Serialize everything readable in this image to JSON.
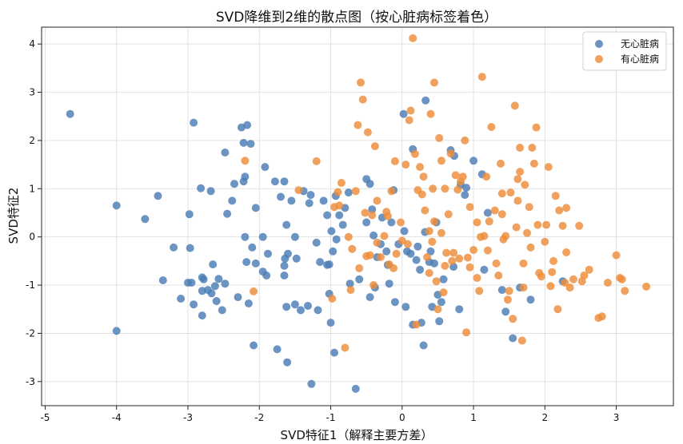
{
  "chart_data": {
    "type": "scatter",
    "title": "SVD降维到2维的散点图（按心脏病标签着色）",
    "xlabel": "SVD特征1（解释主要方差）",
    "ylabel": "SVD特征2",
    "xlim": [
      -5.05,
      3.8
    ],
    "ylim": [
      -3.5,
      4.35
    ],
    "xticks": [
      -5,
      -4,
      -3,
      -2,
      -1,
      0,
      1,
      2,
      3
    ],
    "yticks": [
      -3,
      -2,
      -1,
      0,
      1,
      2,
      3,
      4
    ],
    "grid": true,
    "legend_position": "top-right",
    "series": [
      {
        "name": "无心脏病",
        "color": "#4a7db5",
        "points": [
          [
            -4.65,
            2.55
          ],
          [
            -4.0,
            0.65
          ],
          [
            -4.0,
            -1.95
          ],
          [
            -3.6,
            0.37
          ],
          [
            -3.42,
            0.85
          ],
          [
            -3.35,
            -0.9
          ],
          [
            -3.2,
            -0.22
          ],
          [
            -3.1,
            -1.28
          ],
          [
            -3.0,
            -0.95
          ],
          [
            -2.98,
            0.47
          ],
          [
            -2.97,
            -0.23
          ],
          [
            -2.95,
            -0.95
          ],
          [
            -2.92,
            2.37
          ],
          [
            -2.92,
            -1.4
          ],
          [
            -2.82,
            1.01
          ],
          [
            -2.8,
            -0.84
          ],
          [
            -2.8,
            -1.12
          ],
          [
            -2.78,
            -0.88
          ],
          [
            -2.8,
            -1.63
          ],
          [
            -2.72,
            -1.1
          ],
          [
            -2.68,
            0.95
          ],
          [
            -2.67,
            -1.17
          ],
          [
            -2.65,
            -0.57
          ],
          [
            -2.62,
            -1.02
          ],
          [
            -2.6,
            -1.33
          ],
          [
            -2.57,
            -0.87
          ],
          [
            -2.52,
            -1.52
          ],
          [
            -2.48,
            -0.97
          ],
          [
            -2.48,
            1.75
          ],
          [
            -2.45,
            0.48
          ],
          [
            -2.38,
            0.75
          ],
          [
            -2.35,
            1.1
          ],
          [
            -2.3,
            -1.25
          ],
          [
            -2.25,
            2.27
          ],
          [
            -2.22,
            1.95
          ],
          [
            -2.22,
            1.15
          ],
          [
            -2.2,
            1.25
          ],
          [
            -2.2,
            0.0
          ],
          [
            -2.18,
            -0.52
          ],
          [
            -2.17,
            2.32
          ],
          [
            -2.15,
            -1.38
          ],
          [
            -2.12,
            1.93
          ],
          [
            -2.1,
            -0.22
          ],
          [
            -2.08,
            -2.25
          ],
          [
            -2.05,
            -0.55
          ],
          [
            -2.05,
            0.6
          ],
          [
            -1.95,
            0.0
          ],
          [
            -1.95,
            -0.72
          ],
          [
            -1.92,
            1.45
          ],
          [
            -1.9,
            -0.8
          ],
          [
            -1.88,
            -0.35
          ],
          [
            -1.78,
            1.15
          ],
          [
            -1.75,
            -2.33
          ],
          [
            -1.7,
            0.83
          ],
          [
            -1.65,
            1.15
          ],
          [
            -1.65,
            -0.6
          ],
          [
            -1.64,
            -0.45
          ],
          [
            -1.65,
            -0.8
          ],
          [
            -1.62,
            -1.45
          ],
          [
            -1.62,
            0.25
          ],
          [
            -1.61,
            -2.6
          ],
          [
            -1.6,
            -0.35
          ],
          [
            -1.55,
            0.75
          ],
          [
            -1.5,
            0.0
          ],
          [
            -1.48,
            -0.45
          ],
          [
            -1.5,
            -1.4
          ],
          [
            -1.42,
            -1.52
          ],
          [
            -1.38,
            0.95
          ],
          [
            -1.32,
            -1.43
          ],
          [
            -1.3,
            0.7
          ],
          [
            -1.28,
            0.87
          ],
          [
            -1.27,
            -3.05
          ],
          [
            -1.2,
            -0.12
          ],
          [
            -1.18,
            -1.52
          ],
          [
            -1.15,
            -0.52
          ],
          [
            -1.1,
            0.75
          ],
          [
            -1.05,
            -0.58
          ],
          [
            -1.05,
            0.45
          ],
          [
            -1.02,
            -1.18
          ],
          [
            -1.02,
            -0.57
          ],
          [
            -1.0,
            -1.78
          ],
          [
            -0.99,
            0.12
          ],
          [
            -0.97,
            -0.3
          ],
          [
            -0.95,
            -2.4
          ],
          [
            -0.93,
            0.85
          ],
          [
            -0.92,
            -0.05
          ],
          [
            -0.88,
            0.45
          ],
          [
            -0.83,
            0.25
          ],
          [
            -0.8,
            0.6
          ],
          [
            -0.75,
            0.92
          ],
          [
            -0.73,
            -0.97
          ],
          [
            -0.65,
            -3.15
          ],
          [
            -0.6,
            -0.88
          ],
          [
            -0.5,
            0.3
          ],
          [
            -0.5,
            1.2
          ],
          [
            -0.45,
            1.1
          ],
          [
            -0.45,
            -1.25
          ],
          [
            -0.42,
            0.57
          ],
          [
            -0.4,
            0.03
          ],
          [
            -0.38,
            -1.05
          ],
          [
            -0.35,
            -0.42
          ],
          [
            -0.3,
            -0.15
          ],
          [
            -0.28,
            0.4
          ],
          [
            -0.22,
            -0.3
          ],
          [
            -0.2,
            -0.58
          ],
          [
            -0.18,
            -0.97
          ],
          [
            -0.15,
            0.3
          ],
          [
            -0.12,
            0.97
          ],
          [
            -0.1,
            -1.35
          ],
          [
            -0.05,
            -0.15
          ],
          [
            0.02,
            2.55
          ],
          [
            0.03,
            0.12
          ],
          [
            0.05,
            -1.45
          ],
          [
            0.07,
            -0.3
          ],
          [
            0.12,
            -0.35
          ],
          [
            0.15,
            -1.82
          ],
          [
            0.15,
            1.82
          ],
          [
            0.2,
            -0.48
          ],
          [
            0.22,
            -0.2
          ],
          [
            0.25,
            -0.68
          ],
          [
            0.27,
            -1.78
          ],
          [
            0.3,
            -2.25
          ],
          [
            0.32,
            0.1
          ],
          [
            0.33,
            2.83
          ],
          [
            0.38,
            -0.52
          ],
          [
            0.4,
            -0.3
          ],
          [
            0.42,
            -1.45
          ],
          [
            0.45,
            -0.55
          ],
          [
            0.48,
            0.3
          ],
          [
            0.5,
            -1.2
          ],
          [
            0.52,
            -1.75
          ],
          [
            0.55,
            -1.35
          ],
          [
            0.58,
            -0.88
          ],
          [
            0.68,
            1.8
          ],
          [
            0.72,
            -0.62
          ],
          [
            0.73,
            1.68
          ],
          [
            0.8,
            -1.5
          ],
          [
            0.82,
            1.08
          ],
          [
            0.88,
            0.87
          ],
          [
            0.9,
            1.02
          ],
          [
            1.0,
            1.58
          ],
          [
            1.12,
            1.3
          ],
          [
            1.15,
            -0.68
          ],
          [
            1.2,
            0.5
          ],
          [
            1.4,
            -1.1
          ],
          [
            1.45,
            -1.55
          ],
          [
            1.55,
            -2.1
          ],
          [
            1.65,
            -1.05
          ],
          [
            1.8,
            -1.3
          ],
          [
            2.25,
            -0.92
          ]
        ]
      },
      {
        "name": "有心脏病",
        "color": "#ee8c3a",
        "points": [
          [
            -2.2,
            1.58
          ],
          [
            -2.08,
            -1.13
          ],
          [
            -1.45,
            0.97
          ],
          [
            -1.2,
            1.57
          ],
          [
            -0.98,
            -1.28
          ],
          [
            -0.95,
            0.62
          ],
          [
            -0.9,
            0.93
          ],
          [
            -0.88,
            0.65
          ],
          [
            -0.85,
            1.12
          ],
          [
            -0.8,
            -2.3
          ],
          [
            -0.75,
            0.0
          ],
          [
            -0.72,
            -1.1
          ],
          [
            -0.7,
            -0.25
          ],
          [
            -0.65,
            0.95
          ],
          [
            -0.62,
            2.32
          ],
          [
            -0.6,
            -0.65
          ],
          [
            -0.58,
            3.2
          ],
          [
            -0.55,
            2.85
          ],
          [
            -0.52,
            0.5
          ],
          [
            -0.5,
            -0.4
          ],
          [
            -0.48,
            2.17
          ],
          [
            -0.45,
            -0.38
          ],
          [
            -0.42,
            0.45
          ],
          [
            -0.4,
            -1.0
          ],
          [
            -0.38,
            1.88
          ],
          [
            -0.35,
            0.75
          ],
          [
            -0.35,
            -0.12
          ],
          [
            -0.3,
            -0.42
          ],
          [
            -0.25,
            0.02
          ],
          [
            -0.22,
            0.52
          ],
          [
            -0.2,
            0.43
          ],
          [
            -0.18,
            -0.57
          ],
          [
            -0.15,
            0.95
          ],
          [
            -0.12,
            -0.65
          ],
          [
            -0.1,
            1.57
          ],
          [
            -0.08,
            -0.35
          ],
          [
            -0.02,
            0.3
          ],
          [
            0.0,
            -0.08
          ],
          [
            0.05,
            1.5
          ],
          [
            0.08,
            -0.15
          ],
          [
            0.1,
            2.42
          ],
          [
            0.12,
            2.62
          ],
          [
            0.15,
            4.12
          ],
          [
            0.18,
            1.72
          ],
          [
            0.2,
            -1.82
          ],
          [
            0.22,
            0.97
          ],
          [
            0.25,
            1.45
          ],
          [
            0.28,
            0.88
          ],
          [
            0.3,
            1.25
          ],
          [
            0.32,
            0.55
          ],
          [
            0.35,
            -0.42
          ],
          [
            0.38,
            -0.75
          ],
          [
            0.38,
            0.12
          ],
          [
            0.4,
            2.55
          ],
          [
            0.42,
            -0.1
          ],
          [
            0.43,
            1.0
          ],
          [
            0.45,
            3.2
          ],
          [
            0.45,
            0.32
          ],
          [
            0.48,
            -0.92
          ],
          [
            0.5,
            -1.5
          ],
          [
            0.52,
            2.05
          ],
          [
            0.55,
            0.08
          ],
          [
            0.55,
            1.58
          ],
          [
            0.58,
            -1.15
          ],
          [
            0.6,
            1.0
          ],
          [
            0.6,
            -0.6
          ],
          [
            0.62,
            -0.33
          ],
          [
            0.65,
            0.47
          ],
          [
            0.68,
            1.73
          ],
          [
            0.7,
            -0.5
          ],
          [
            0.72,
            -0.33
          ],
          [
            0.75,
            1.28
          ],
          [
            0.78,
            0.98
          ],
          [
            0.8,
            -0.45
          ],
          [
            0.82,
            1.15
          ],
          [
            0.85,
            1.25
          ],
          [
            0.88,
            2.0
          ],
          [
            0.9,
            -1.98
          ],
          [
            0.92,
            -0.43
          ],
          [
            0.95,
            -0.63
          ],
          [
            1.0,
            -0.27
          ],
          [
            1.05,
            0.3
          ],
          [
            1.08,
            -1.12
          ],
          [
            1.1,
            0.0
          ],
          [
            1.12,
            3.32
          ],
          [
            1.15,
            0.02
          ],
          [
            1.18,
            1.25
          ],
          [
            1.2,
            -0.28
          ],
          [
            1.22,
            0.32
          ],
          [
            1.25,
            2.28
          ],
          [
            1.3,
            0.55
          ],
          [
            1.32,
            -0.55
          ],
          [
            1.35,
            -0.8
          ],
          [
            1.38,
            1.52
          ],
          [
            1.4,
            0.47
          ],
          [
            1.42,
            -0.05
          ],
          [
            1.45,
            0.02
          ],
          [
            1.48,
            -1.3
          ],
          [
            1.5,
            -1.12
          ],
          [
            1.52,
            0.92
          ],
          [
            1.55,
            -1.7
          ],
          [
            1.58,
            2.72
          ],
          [
            1.6,
            0.2
          ],
          [
            1.62,
            1.2
          ],
          [
            1.65,
            1.85
          ],
          [
            1.65,
            1.35
          ],
          [
            1.68,
            -2.15
          ],
          [
            1.7,
            -1.05
          ],
          [
            1.7,
            -0.55
          ],
          [
            1.72,
            1.08
          ],
          [
            1.75,
            0.08
          ],
          [
            1.78,
            0.62
          ],
          [
            1.8,
            -0.22
          ],
          [
            1.82,
            1.85
          ],
          [
            1.85,
            1.52
          ],
          [
            1.88,
            2.27
          ],
          [
            1.9,
            0.25
          ],
          [
            1.92,
            -0.75
          ],
          [
            1.95,
            -0.82
          ],
          [
            2.0,
            -0.1
          ],
          [
            2.02,
            0.25
          ],
          [
            2.05,
            1.45
          ],
          [
            2.08,
            -1.02
          ],
          [
            2.1,
            -0.73
          ],
          [
            2.15,
            0.85
          ],
          [
            2.18,
            -1.5
          ],
          [
            2.2,
            0.55
          ],
          [
            2.25,
            0.23
          ],
          [
            2.28,
            -0.95
          ],
          [
            2.3,
            -0.32
          ],
          [
            2.35,
            -1.05
          ],
          [
            2.4,
            -0.88
          ],
          [
            2.48,
            0.23
          ],
          [
            2.52,
            -0.92
          ],
          [
            2.55,
            -0.8
          ],
          [
            2.62,
            -0.68
          ],
          [
            2.75,
            -1.68
          ],
          [
            2.8,
            -1.65
          ],
          [
            2.88,
            -0.95
          ],
          [
            3.0,
            -0.38
          ],
          [
            3.05,
            -0.85
          ],
          [
            3.08,
            -0.88
          ],
          [
            3.12,
            -1.12
          ],
          [
            3.42,
            -1.03
          ],
          [
            2.3,
            0.6
          ],
          [
            1.4,
            0.9
          ],
          [
            1.62,
            0.75
          ],
          [
            0.95,
            0.62
          ],
          [
            2.12,
            -0.5
          ],
          [
            1.05,
            -0.85
          ]
        ]
      }
    ]
  }
}
